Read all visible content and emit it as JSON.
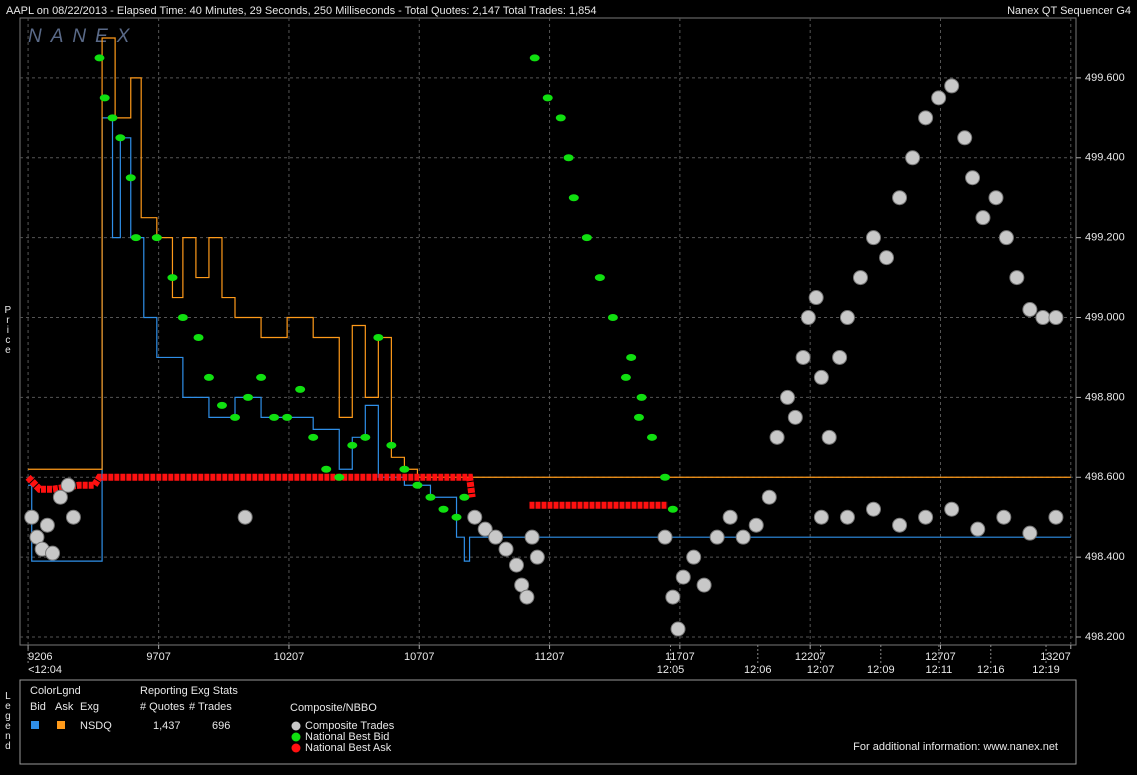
{
  "chart_data": {
    "type": "scatter",
    "title": "AAPL on 08/22/2013  -  Elapsed Time: 40 Minutes, 29 Seconds, 250 Milliseconds  -  Total Quotes: 2,147  Total Trades: 1,854",
    "source": "Nanex QT Sequencer G4",
    "logo": "NANEX",
    "y_label": "Price",
    "xlim": [
      9175,
      13227
    ],
    "ylim": [
      498.18,
      499.75
    ],
    "xticks": [
      9206,
      9707,
      10207,
      10707,
      11207,
      11707,
      12207,
      12707,
      13207
    ],
    "x2ticks": [
      {
        "value": 9206,
        "label": "<12:04"
      },
      {
        "value": 11671,
        "label": "12:05"
      },
      {
        "value": 12006,
        "label": "12:06"
      },
      {
        "value": 12247,
        "label": "12:07"
      },
      {
        "value": 12478,
        "label": "12:09"
      },
      {
        "value": 12701,
        "label": "12:11"
      },
      {
        "value": 12900,
        "label": "12:16"
      },
      {
        "value": 13112,
        "label": "12:19"
      }
    ],
    "yticks": [
      {
        "value": 498.2,
        "label": "498.200"
      },
      {
        "value": 498.4,
        "label": "498.400"
      },
      {
        "value": 498.6,
        "label": "498.600"
      },
      {
        "value": 498.8,
        "label": "498.800"
      },
      {
        "value": 499.0,
        "label": "499.000"
      },
      {
        "value": 499.2,
        "label": "499.200"
      },
      {
        "value": 499.4,
        "label": "499.400"
      },
      {
        "value": 499.6,
        "label": "499.600"
      }
    ],
    "grid": true,
    "quotes": [
      {
        "color": "#2f8fe8",
        "x": [
          9206,
          9220,
          9480,
          9490,
          9530,
          9560,
          9600,
          9650,
          9700,
          9800,
          9900,
          10000,
          10100,
          10200,
          10300,
          10400,
          10450,
          10500,
          10550,
          10650,
          10750,
          10850,
          10880,
          10900,
          13207
        ],
        "values": [
          498.58,
          498.39,
          498.39,
          499.5,
          499.2,
          499.45,
          499.2,
          499.0,
          498.9,
          498.8,
          498.75,
          498.8,
          498.75,
          498.75,
          498.72,
          498.62,
          498.7,
          498.78,
          498.6,
          498.58,
          498.55,
          498.45,
          498.39,
          498.45,
          498.45
        ]
      },
      {
        "color": "#ff9a1a",
        "x": [
          9206,
          9480,
          9490,
          9540,
          9600,
          9640,
          9700,
          9760,
          9800,
          9850,
          9900,
          9950,
          10000,
          10100,
          10200,
          10300,
          10400,
          10450,
          10500,
          10550,
          10600,
          10650,
          10700,
          10900,
          13207
        ],
        "values": [
          498.62,
          498.62,
          499.7,
          499.5,
          499.6,
          499.25,
          499.2,
          499.05,
          499.2,
          499.1,
          499.2,
          499.05,
          499.0,
          498.95,
          499.0,
          498.95,
          498.75,
          498.98,
          498.8,
          498.95,
          498.65,
          498.62,
          498.6,
          498.6,
          498.6
        ]
      }
    ],
    "series": [
      {
        "name": "National Best Ask",
        "color": "#ff1010",
        "marker": "line",
        "x": [
          9206,
          9250,
          9300,
          9400,
          9460,
          9480,
          10900,
          10910,
          null,
          11130,
          11660
        ],
        "values": [
          498.6,
          498.57,
          498.57,
          498.58,
          498.58,
          498.6,
          498.6,
          498.55,
          null,
          498.53,
          498.53
        ]
      },
      {
        "name": "National Best Bid",
        "color": "#10e010",
        "marker": "dot",
        "x": [
          9480,
          9500,
          9530,
          9560,
          9600,
          9620,
          9700,
          9760,
          9800,
          9860,
          9900,
          9950,
          10000,
          10050,
          10100,
          10150,
          10200,
          10250,
          10300,
          10350,
          10400,
          10450,
          10500,
          10550,
          10600,
          10650,
          10700,
          10750,
          10800,
          10850,
          10880,
          11150,
          11200,
          11250,
          11280,
          11300,
          11350,
          11400,
          11450,
          11500,
          11520,
          11550,
          11560,
          11600,
          11650,
          11680
        ],
        "values": [
          499.65,
          499.55,
          499.5,
          499.45,
          499.35,
          499.2,
          499.2,
          499.1,
          499.0,
          498.95,
          498.85,
          498.78,
          498.75,
          498.8,
          498.85,
          498.75,
          498.75,
          498.82,
          498.7,
          498.62,
          498.6,
          498.68,
          498.7,
          498.95,
          498.68,
          498.62,
          498.58,
          498.55,
          498.52,
          498.5,
          498.55,
          499.65,
          499.55,
          499.5,
          499.4,
          499.3,
          499.2,
          499.1,
          499.0,
          498.85,
          498.9,
          498.75,
          498.8,
          498.7,
          498.6,
          498.52
        ]
      },
      {
        "name": "Composite Trades",
        "color": "#c8c8c8",
        "marker": "circle",
        "x": [
          9220,
          9240,
          9260,
          9280,
          9300,
          9330,
          9360,
          9380,
          10039,
          10920,
          10960,
          11000,
          11040,
          11080,
          11100,
          11120,
          11140,
          11160,
          11650,
          11680,
          11700,
          11720,
          11760,
          11800,
          11850,
          11900,
          11950,
          12000,
          12050,
          12080,
          12120,
          12150,
          12180,
          12200,
          12230,
          12250,
          12280,
          12320,
          12350,
          12400,
          12450,
          12500,
          12550,
          12600,
          12650,
          12700,
          12750,
          12800,
          12830,
          12870,
          12920,
          12960,
          13000,
          13050,
          13100,
          13150,
          12250,
          12350,
          12450,
          12550,
          12650,
          12750,
          12850,
          12950,
          13050,
          13150
        ],
        "values": [
          498.5,
          498.45,
          498.42,
          498.48,
          498.41,
          498.55,
          498.58,
          498.5,
          498.5,
          498.5,
          498.47,
          498.45,
          498.42,
          498.38,
          498.33,
          498.3,
          498.45,
          498.4,
          498.45,
          498.3,
          498.22,
          498.35,
          498.4,
          498.33,
          498.45,
          498.5,
          498.45,
          498.48,
          498.55,
          498.7,
          498.8,
          498.75,
          498.9,
          499.0,
          499.05,
          498.85,
          498.7,
          498.9,
          499.0,
          499.1,
          499.2,
          499.15,
          499.3,
          499.4,
          499.5,
          499.55,
          499.58,
          499.45,
          499.35,
          499.25,
          499.3,
          499.2,
          499.1,
          499.02,
          499.0,
          499.0,
          498.5,
          498.5,
          498.52,
          498.48,
          498.5,
          498.52,
          498.47,
          498.5,
          498.46,
          498.5
        ]
      }
    ]
  },
  "legend": {
    "title": "Legend",
    "color_heading": "ColorLgnd",
    "color_columns": [
      "Bid",
      "Ask",
      "Exg"
    ],
    "exchange": "NSDQ",
    "stats_heading": "Reporting Exg Stats",
    "stats_columns": [
      "# Quotes",
      "# Trades"
    ],
    "stats_row": [
      "1,437",
      "696"
    ],
    "nbbo_heading": "Composite/NBBO",
    "footer": "For additional information: www.nanex.net"
  }
}
